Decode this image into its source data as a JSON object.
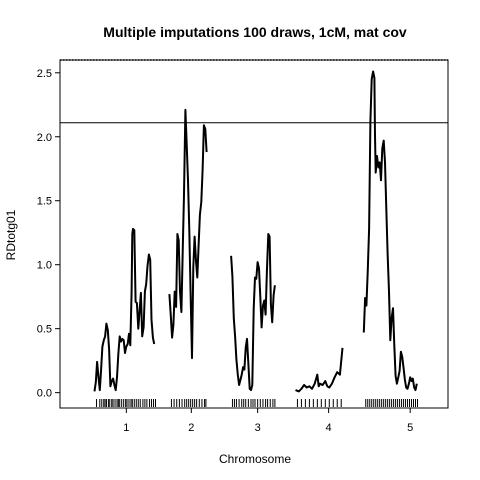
{
  "chart_data": {
    "type": "line",
    "title": "Multiple imputations 100 draws, 1cM, mat cov",
    "xlabel": "Chromosome",
    "ylabel": "RDtotg01",
    "ylim": [
      -0.12,
      2.6
    ],
    "yticks": [
      0.0,
      0.5,
      1.0,
      1.5,
      2.0,
      2.5
    ],
    "ytick_labels": [
      "0.0",
      "0.5",
      "1.0",
      "1.5",
      "2.0",
      "2.5"
    ],
    "xticks": [
      1.0,
      1.98,
      2.98,
      4.05,
      5.28
    ],
    "xtick_labels": [
      "1",
      "2",
      "3",
      "4",
      "5"
    ],
    "xlim": [
      0.0,
      5.85
    ],
    "threshold": 2.11,
    "upper_dotted_line": 2.6,
    "grid": false,
    "series": [
      {
        "chromosome": "1",
        "points": [
          [
            0.52,
            0.01
          ],
          [
            0.54,
            0.08
          ],
          [
            0.56,
            0.24
          ],
          [
            0.58,
            0.12
          ],
          [
            0.6,
            0.02
          ],
          [
            0.62,
            0.18
          ],
          [
            0.64,
            0.36
          ],
          [
            0.66,
            0.41
          ],
          [
            0.68,
            0.44
          ],
          [
            0.7,
            0.54
          ],
          [
            0.72,
            0.49
          ],
          [
            0.74,
            0.34
          ],
          [
            0.76,
            0.05
          ],
          [
            0.78,
            0.09
          ],
          [
            0.8,
            0.11
          ],
          [
            0.82,
            0.06
          ],
          [
            0.84,
            0.02
          ],
          [
            0.86,
            0.12
          ],
          [
            0.88,
            0.31
          ],
          [
            0.9,
            0.44
          ],
          [
            0.92,
            0.4
          ],
          [
            0.94,
            0.42
          ],
          [
            0.96,
            0.41
          ],
          [
            0.98,
            0.31
          ],
          [
            1.0,
            0.36
          ],
          [
            1.02,
            0.38
          ],
          [
            1.04,
            0.46
          ],
          [
            1.06,
            0.37
          ],
          [
            1.08,
            0.79
          ],
          [
            1.09,
            1.24
          ],
          [
            1.1,
            1.28
          ],
          [
            1.12,
            1.27
          ],
          [
            1.14,
            0.71
          ],
          [
            1.16,
            0.7
          ],
          [
            1.18,
            0.5
          ],
          [
            1.2,
            0.64
          ],
          [
            1.22,
            0.78
          ],
          [
            1.24,
            0.44
          ],
          [
            1.26,
            0.51
          ],
          [
            1.28,
            0.79
          ],
          [
            1.3,
            0.85
          ],
          [
            1.32,
            0.99
          ],
          [
            1.34,
            1.08
          ],
          [
            1.36,
            1.04
          ],
          [
            1.38,
            0.57
          ],
          [
            1.4,
            0.43
          ],
          [
            1.42,
            0.38
          ]
        ]
      },
      {
        "chromosome": "2",
        "points": [
          [
            1.65,
            0.77
          ],
          [
            1.67,
            0.6
          ],
          [
            1.69,
            0.43
          ],
          [
            1.71,
            0.53
          ],
          [
            1.73,
            0.79
          ],
          [
            1.75,
            0.67
          ],
          [
            1.77,
            1.24
          ],
          [
            1.79,
            1.19
          ],
          [
            1.81,
            0.79
          ],
          [
            1.83,
            0.63
          ],
          [
            1.85,
            1.1
          ],
          [
            1.87,
            1.55
          ],
          [
            1.89,
            2.21
          ],
          [
            1.91,
            1.94
          ],
          [
            1.93,
            1.66
          ],
          [
            1.95,
            1.27
          ],
          [
            1.97,
            0.74
          ],
          [
            1.99,
            0.27
          ],
          [
            2.01,
            0.98
          ],
          [
            2.03,
            1.22
          ],
          [
            2.05,
            1.03
          ],
          [
            2.07,
            0.9
          ],
          [
            2.09,
            1.15
          ],
          [
            2.11,
            1.39
          ],
          [
            2.13,
            1.49
          ],
          [
            2.15,
            1.74
          ],
          [
            2.17,
            2.09
          ],
          [
            2.19,
            2.06
          ],
          [
            2.21,
            1.88
          ]
        ]
      },
      {
        "chromosome": "3",
        "points": [
          [
            2.58,
            1.07
          ],
          [
            2.6,
            0.91
          ],
          [
            2.62,
            0.58
          ],
          [
            2.64,
            0.44
          ],
          [
            2.66,
            0.26
          ],
          [
            2.68,
            0.14
          ],
          [
            2.7,
            0.06
          ],
          [
            2.72,
            0.1
          ],
          [
            2.74,
            0.14
          ],
          [
            2.76,
            0.2
          ],
          [
            2.78,
            0.18
          ],
          [
            2.8,
            0.35
          ],
          [
            2.82,
            0.42
          ],
          [
            2.84,
            0.22
          ],
          [
            2.86,
            0.03
          ],
          [
            2.88,
            0.02
          ],
          [
            2.9,
            0.06
          ],
          [
            2.92,
            0.66
          ],
          [
            2.94,
            0.9
          ],
          [
            2.96,
            0.89
          ],
          [
            2.98,
            1.02
          ],
          [
            3.0,
            0.97
          ],
          [
            3.02,
            0.75
          ],
          [
            3.04,
            0.51
          ],
          [
            3.06,
            0.68
          ],
          [
            3.08,
            0.72
          ],
          [
            3.1,
            0.61
          ],
          [
            3.12,
            0.95
          ],
          [
            3.14,
            1.24
          ],
          [
            3.16,
            1.22
          ],
          [
            3.18,
            0.69
          ],
          [
            3.2,
            0.55
          ],
          [
            3.22,
            0.76
          ],
          [
            3.24,
            0.84
          ]
        ]
      },
      {
        "chromosome": "4",
        "points": [
          [
            3.55,
            0.02
          ],
          [
            3.6,
            0.01
          ],
          [
            3.64,
            0.03
          ],
          [
            3.68,
            0.06
          ],
          [
            3.72,
            0.04
          ],
          [
            3.76,
            0.05
          ],
          [
            3.8,
            0.03
          ],
          [
            3.84,
            0.07
          ],
          [
            3.88,
            0.14
          ],
          [
            3.9,
            0.05
          ],
          [
            3.92,
            0.07
          ],
          [
            3.96,
            0.06
          ],
          [
            4.0,
            0.09
          ],
          [
            4.03,
            0.05
          ],
          [
            4.06,
            0.04
          ],
          [
            4.1,
            0.07
          ],
          [
            4.14,
            0.12
          ],
          [
            4.18,
            0.16
          ],
          [
            4.22,
            0.14
          ],
          [
            4.26,
            0.35
          ]
        ]
      },
      {
        "chromosome": "5",
        "points": [
          [
            4.58,
            0.47
          ],
          [
            4.6,
            0.74
          ],
          [
            4.62,
            0.68
          ],
          [
            4.64,
            0.94
          ],
          [
            4.66,
            1.28
          ],
          [
            4.68,
            2.12
          ],
          [
            4.7,
            2.45
          ],
          [
            4.72,
            2.51
          ],
          [
            4.74,
            2.46
          ],
          [
            4.75,
            2.01
          ],
          [
            4.76,
            1.72
          ],
          [
            4.78,
            1.85
          ],
          [
            4.8,
            1.76
          ],
          [
            4.82,
            1.8
          ],
          [
            4.84,
            1.66
          ],
          [
            4.86,
            1.91
          ],
          [
            4.88,
            1.97
          ],
          [
            4.9,
            1.8
          ],
          [
            4.92,
            1.44
          ],
          [
            4.94,
            1.09
          ],
          [
            4.96,
            0.79
          ],
          [
            4.98,
            0.41
          ],
          [
            5.0,
            0.58
          ],
          [
            5.02,
            0.66
          ],
          [
            5.04,
            0.37
          ],
          [
            5.06,
            0.13
          ],
          [
            5.08,
            0.07
          ],
          [
            5.1,
            0.12
          ],
          [
            5.12,
            0.17
          ],
          [
            5.14,
            0.32
          ],
          [
            5.16,
            0.28
          ],
          [
            5.18,
            0.19
          ],
          [
            5.2,
            0.1
          ],
          [
            5.22,
            0.04
          ],
          [
            5.24,
            0.03
          ],
          [
            5.26,
            0.07
          ],
          [
            5.28,
            0.12
          ],
          [
            5.3,
            0.09
          ],
          [
            5.32,
            0.11
          ],
          [
            5.34,
            0.04
          ],
          [
            5.36,
            0.02
          ],
          [
            5.38,
            0.07
          ]
        ]
      }
    ],
    "markers": [
      0.55,
      0.6,
      0.63,
      0.66,
      0.68,
      0.7,
      0.73,
      0.75,
      0.78,
      0.8,
      0.83,
      0.86,
      0.88,
      0.9,
      0.93,
      0.96,
      0.99,
      1.01,
      1.04,
      1.07,
      1.09,
      1.12,
      1.15,
      1.18,
      1.21,
      1.25,
      1.28,
      1.31,
      1.35,
      1.38,
      1.41,
      1.44,
      1.68,
      1.72,
      1.76,
      1.8,
      1.84,
      1.88,
      1.91,
      1.94,
      1.97,
      2.0,
      2.03,
      2.06,
      2.1,
      2.14,
      2.18,
      2.2,
      2.6,
      2.63,
      2.66,
      2.7,
      2.74,
      2.77,
      2.8,
      2.84,
      2.88,
      2.91,
      2.94,
      2.98,
      3.02,
      3.06,
      3.1,
      3.13,
      3.17,
      3.21,
      3.24,
      3.58,
      3.64,
      3.7,
      3.76,
      3.82,
      3.88,
      3.94,
      4.0,
      4.06,
      4.12,
      4.18,
      4.24,
      4.61,
      4.64,
      4.67,
      4.7,
      4.73,
      4.76,
      4.79,
      4.82,
      4.85,
      4.88,
      4.91,
      4.94,
      4.97,
      5.0,
      5.03,
      5.06,
      5.09,
      5.12,
      5.15,
      5.18,
      5.21,
      5.24,
      5.27,
      5.3,
      5.33,
      5.36,
      5.39
    ]
  }
}
